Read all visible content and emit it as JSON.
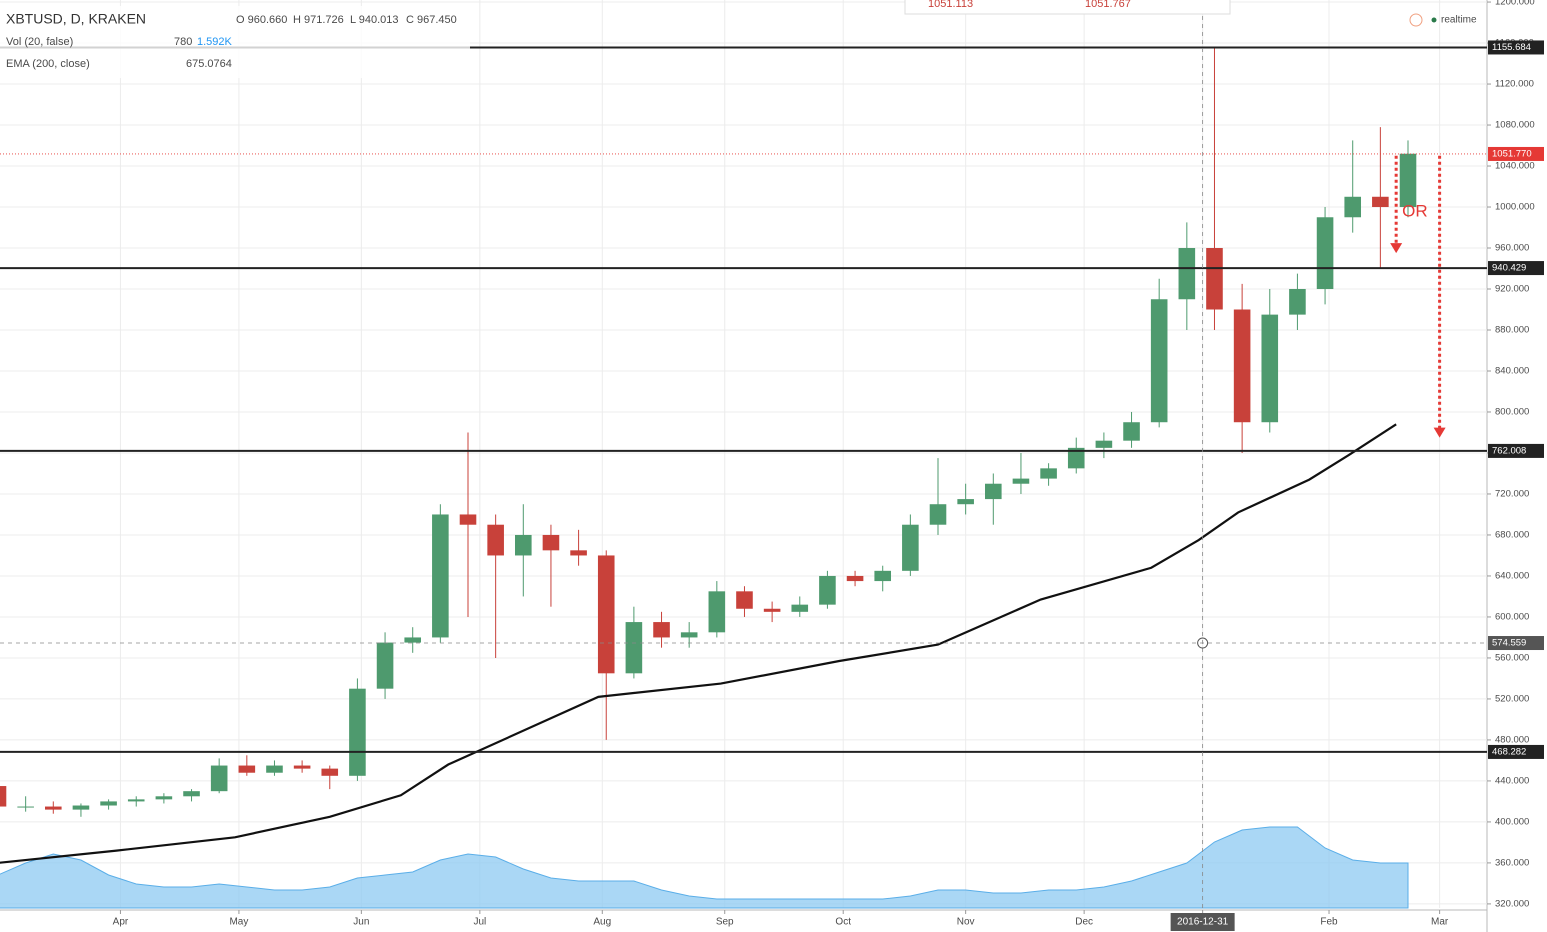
{
  "chart_data": {
    "type": "candlestick",
    "title": "XBTUSD, D, KRAKEN",
    "ohlc_legend": [
      "O 960.660",
      "H 971.726",
      "L 940.013",
      "C 967.450"
    ],
    "realtime_label": "realtime",
    "order_panel": [
      "1051.113",
      "1051.767"
    ],
    "x": [
      0,
      7,
      14,
      21,
      28,
      35,
      42,
      49,
      56,
      63,
      70,
      77,
      84,
      91,
      98,
      105,
      112,
      119,
      126,
      133,
      140,
      147,
      154,
      161,
      168,
      175,
      182,
      189,
      196,
      203,
      210,
      217,
      224,
      231,
      238,
      245,
      252,
      259,
      266,
      273,
      280,
      287,
      294,
      301,
      308,
      315,
      322,
      329,
      336,
      343,
      350,
      357
    ],
    "open": [
      435,
      415,
      415,
      412,
      416,
      420,
      422,
      425,
      430,
      455,
      448,
      455,
      452,
      445,
      530,
      575,
      580,
      700,
      690,
      660,
      680,
      665,
      660,
      545,
      595,
      580,
      585,
      625,
      608,
      605,
      612,
      640,
      635,
      645,
      690,
      710,
      715,
      730,
      735,
      745,
      765,
      772,
      790,
      910,
      960,
      900,
      790,
      895,
      920,
      990,
      1010,
      1000
    ],
    "high": [
      440,
      425,
      420,
      418,
      422,
      425,
      428,
      432,
      462,
      465,
      460,
      460,
      455,
      540,
      585,
      590,
      710,
      780,
      700,
      710,
      690,
      685,
      665,
      610,
      605,
      595,
      635,
      630,
      615,
      620,
      645,
      645,
      650,
      700,
      755,
      730,
      740,
      760,
      750,
      775,
      780,
      800,
      930,
      985,
      1155,
      925,
      920,
      935,
      1000,
      1065,
      1078,
      1065
    ],
    "low": [
      405,
      410,
      408,
      405,
      412,
      415,
      418,
      420,
      428,
      445,
      445,
      448,
      432,
      440,
      520,
      565,
      575,
      600,
      560,
      620,
      610,
      650,
      480,
      540,
      570,
      570,
      580,
      600,
      595,
      600,
      608,
      630,
      625,
      640,
      680,
      700,
      690,
      720,
      728,
      740,
      755,
      765,
      785,
      880,
      880,
      760,
      780,
      880,
      905,
      975,
      940,
      990
    ],
    "close": [
      415,
      415,
      412,
      416,
      420,
      422,
      425,
      430,
      455,
      448,
      455,
      452,
      445,
      530,
      575,
      580,
      700,
      690,
      660,
      680,
      665,
      660,
      545,
      595,
      580,
      585,
      625,
      608,
      605,
      612,
      640,
      635,
      645,
      690,
      710,
      715,
      730,
      735,
      745,
      765,
      772,
      790,
      910,
      960,
      900,
      790,
      895,
      920,
      990,
      1010,
      1000,
      1052
    ],
    "up_color": "#4e9a6e",
    "down_color": "#c8413a",
    "xlim": [
      0,
      377
    ],
    "xticks": [
      {
        "value": 31,
        "label": "Apr"
      },
      {
        "value": 61,
        "label": "May"
      },
      {
        "value": 92,
        "label": "Jun"
      },
      {
        "value": 122,
        "label": "Jul"
      },
      {
        "value": 153,
        "label": "Aug"
      },
      {
        "value": 184,
        "label": "Sep"
      },
      {
        "value": 214,
        "label": "Oct"
      },
      {
        "value": 245,
        "label": "Nov"
      },
      {
        "value": 275,
        "label": "Dec"
      },
      {
        "value": 305,
        "label": "2016-12-31"
      },
      {
        "value": 337,
        "label": "Feb"
      },
      {
        "value": 365,
        "label": "Mar"
      }
    ],
    "ylim": [
      316,
      1202
    ],
    "yticks": [
      {
        "value": 320,
        "label": "320.000"
      },
      {
        "value": 360,
        "label": "360.000"
      },
      {
        "value": 400,
        "label": "400.000"
      },
      {
        "value": 440,
        "label": "440.000"
      },
      {
        "value": 480,
        "label": "480.000"
      },
      {
        "value": 520,
        "label": "520.000"
      },
      {
        "value": 560,
        "label": "560.000"
      },
      {
        "value": 600,
        "label": "600.000"
      },
      {
        "value": 640,
        "label": "640.000"
      },
      {
        "value": 680,
        "label": "680.000"
      },
      {
        "value": 720,
        "label": "720.000"
      },
      {
        "value": 760,
        "label": "760.000"
      },
      {
        "value": 800,
        "label": "800.000"
      },
      {
        "value": 840,
        "label": "840.000"
      },
      {
        "value": 880,
        "label": "880.000"
      },
      {
        "value": 920,
        "label": "920.000"
      },
      {
        "value": 960,
        "label": "960.000"
      },
      {
        "value": 1000,
        "label": "1000.000"
      },
      {
        "value": 1040,
        "label": "1040.000"
      },
      {
        "value": 1080,
        "label": "1080.000"
      },
      {
        "value": 1120,
        "label": "1120.000"
      },
      {
        "value": 1160,
        "label": "1160.000"
      },
      {
        "value": 1200,
        "label": "1200.000"
      }
    ],
    "grid": true,
    "ema": {
      "name": "EMA (200, close)",
      "legend_value": "675.0764",
      "color": "#111111",
      "x": [
        0,
        30,
        60,
        84,
        102,
        114,
        152,
        183,
        213,
        238,
        264,
        292,
        304,
        314,
        332,
        342,
        354
      ],
      "values": [
        360,
        372,
        385,
        405,
        426,
        456,
        522,
        535,
        557,
        573,
        617,
        648,
        675,
        702,
        734,
        758,
        788
      ]
    },
    "volume": {
      "name": "Vol (20, false)",
      "legend_values": [
        "780",
        "1.592K"
      ],
      "color": "#8ec9f2",
      "ylim": [
        0,
        4
      ],
      "values": [
        1.1,
        1.5,
        1.8,
        1.6,
        1.1,
        0.8,
        0.7,
        0.7,
        0.8,
        0.7,
        0.6,
        0.6,
        0.7,
        1.0,
        1.1,
        1.2,
        1.6,
        1.8,
        1.7,
        1.3,
        1.0,
        0.9,
        0.9,
        0.9,
        0.6,
        0.4,
        0.3,
        0.3,
        0.3,
        0.3,
        0.3,
        0.3,
        0.3,
        0.4,
        0.6,
        0.6,
        0.5,
        0.5,
        0.6,
        0.6,
        0.7,
        0.9,
        1.2,
        1.5,
        2.2,
        2.6,
        2.7,
        2.7,
        2.0,
        1.6,
        1.5,
        1.5
      ]
    },
    "levels": [
      {
        "value": 1155.684,
        "label": "1155.684"
      },
      {
        "value": 940.429,
        "label": "940.429"
      },
      {
        "value": 762.008,
        "label": "762.008"
      },
      {
        "value": 468.282,
        "label": "468.282"
      }
    ],
    "price_line": {
      "value": 1051.77,
      "label": "1051.770",
      "color": "#e53935"
    },
    "crosshair": {
      "x": 305,
      "y": 574.559,
      "label": "574.559"
    },
    "arrows": [
      {
        "x": 354,
        "from": 1050,
        "to": 955
      },
      {
        "x": 365,
        "from": 1050,
        "to": 775
      }
    ],
    "annotation": "OR"
  }
}
